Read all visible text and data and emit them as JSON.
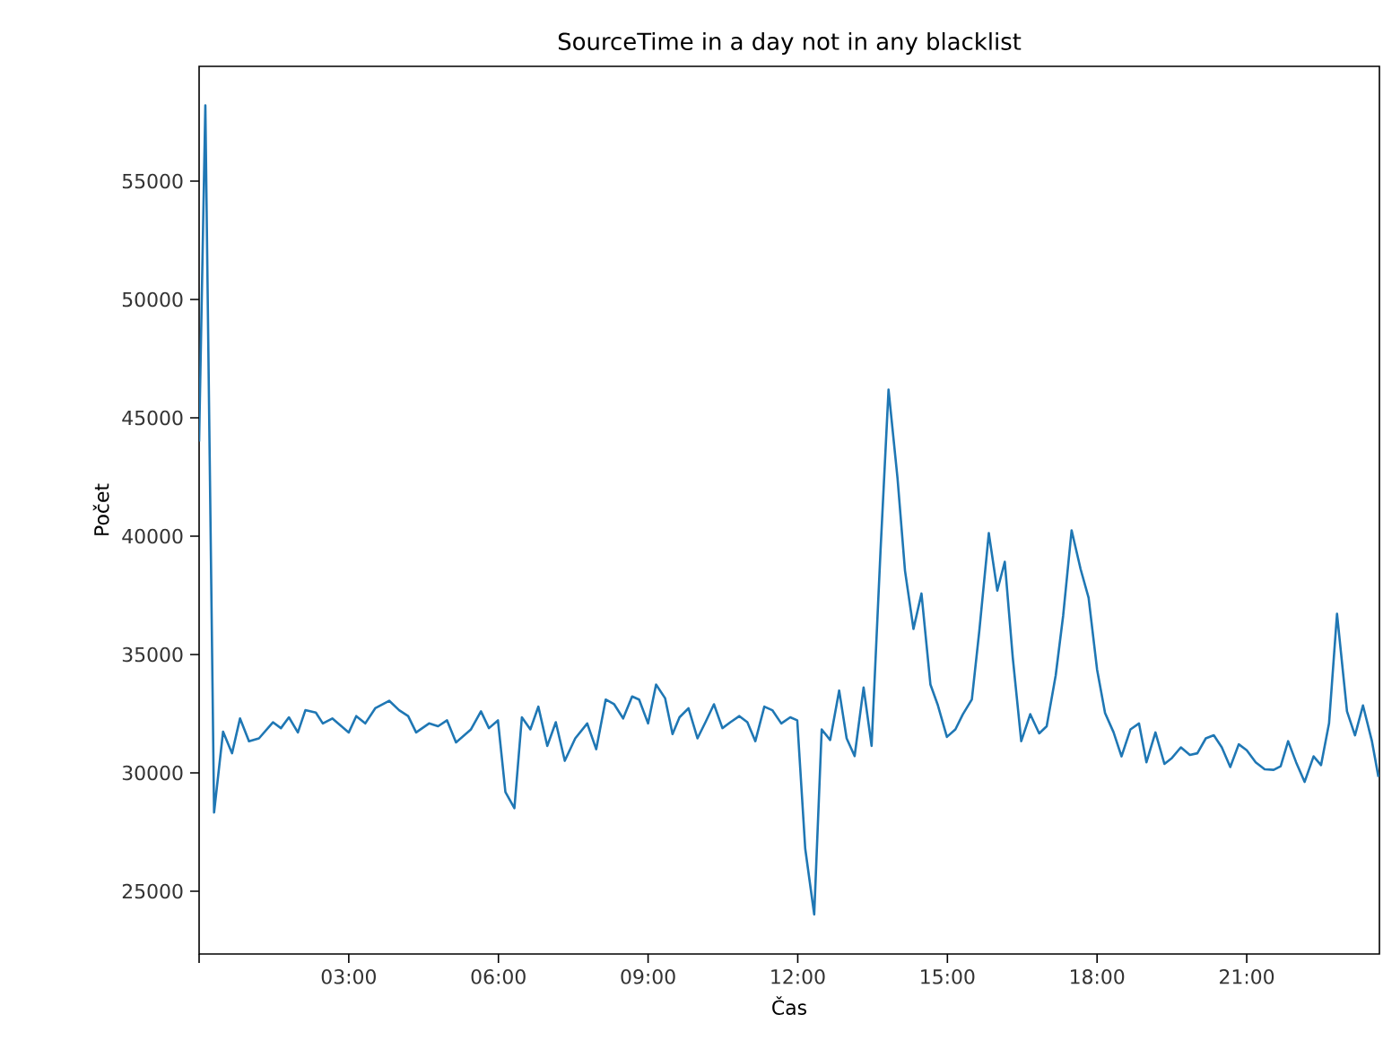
{
  "chart_data": {
    "type": "line",
    "title": "SourceTime in a day not in any blacklist",
    "xlabel": "Čas",
    "ylabel": "Počet",
    "x": [
      0,
      0.125,
      0.3,
      0.48,
      0.66,
      0.82,
      1.0,
      1.2,
      1.48,
      1.64,
      1.8,
      1.98,
      2.13,
      2.34,
      2.48,
      2.67,
      3.0,
      3.15,
      3.33,
      3.53,
      3.81,
      4.01,
      4.19,
      4.35,
      4.61,
      4.79,
      4.97,
      5.15,
      5.45,
      5.65,
      5.81,
      5.99,
      6.14,
      6.32,
      6.47,
      6.64,
      6.8,
      6.98,
      7.15,
      7.33,
      7.54,
      7.78,
      7.96,
      8.15,
      8.32,
      8.5,
      8.68,
      8.82,
      9.0,
      9.16,
      9.34,
      9.49,
      9.63,
      9.81,
      9.99,
      10.15,
      10.32,
      10.49,
      10.65,
      10.83,
      10.99,
      11.15,
      11.33,
      11.49,
      11.67,
      11.85,
      11.99,
      12.15,
      12.33,
      12.48,
      12.65,
      12.83,
      12.98,
      13.14,
      13.32,
      13.48,
      13.66,
      13.82,
      14.0,
      14.15,
      14.32,
      14.48,
      14.66,
      14.81,
      14.99,
      15.16,
      15.31,
      15.49,
      15.64,
      15.83,
      16.0,
      16.15,
      16.31,
      16.48,
      16.66,
      16.84,
      16.99,
      17.17,
      17.32,
      17.49,
      17.67,
      17.83,
      18.0,
      18.16,
      18.33,
      18.49,
      18.67,
      18.84,
      18.99,
      19.17,
      19.35,
      19.5,
      19.68,
      19.86,
      20.01,
      20.18,
      20.34,
      20.5,
      20.67,
      20.84,
      21.0,
      21.18,
      21.36,
      21.54,
      21.68,
      21.83,
      21.99,
      22.16,
      22.34,
      22.49,
      22.65,
      22.81,
      23.01,
      23.17,
      23.33,
      23.51,
      23.64
    ],
    "series": [
      {
        "color": "#1f77b4",
        "values": [
          44000,
          58200,
          28330,
          31740,
          30830,
          32300,
          31340,
          31460,
          32140,
          31890,
          32350,
          31710,
          32650,
          32550,
          32090,
          32300,
          31710,
          32400,
          32090,
          32730,
          33050,
          32650,
          32400,
          31710,
          32090,
          31970,
          32220,
          31290,
          31840,
          32600,
          31890,
          32220,
          29190,
          28510,
          32350,
          31840,
          32800,
          31140,
          32140,
          30510,
          31460,
          32090,
          31000,
          33100,
          32900,
          32300,
          33230,
          33100,
          32090,
          33730,
          33160,
          31640,
          32350,
          32730,
          31460,
          32140,
          32900,
          31890,
          32140,
          32400,
          32140,
          31340,
          32800,
          32650,
          32090,
          32350,
          32220,
          26800,
          24020,
          31840,
          31390,
          33480,
          31460,
          30710,
          33610,
          31140,
          39420,
          46190,
          42450,
          38540,
          36080,
          37580,
          33730,
          32850,
          31520,
          31840,
          32480,
          33100,
          36010,
          40130,
          37700,
          38920,
          34870,
          31340,
          32480,
          31670,
          31970,
          34110,
          36640,
          40250,
          38610,
          37400,
          34370,
          32530,
          31720,
          30700,
          31840,
          32090,
          30450,
          31710,
          30380,
          30630,
          31080,
          30760,
          30830,
          31460,
          31590,
          31080,
          30250,
          31210,
          30960,
          30450,
          30150,
          30130,
          30280,
          31340,
          30450,
          29620,
          30700,
          30330,
          32090,
          36720,
          32600,
          31590,
          32850,
          31340,
          29830
        ]
      }
    ],
    "xlim": [
      0,
      23.66
    ],
    "ylim": [
      22350,
      59850
    ],
    "xticks": [
      {
        "value": 0,
        "label": null
      },
      {
        "value": 3,
        "label": "03:00"
      },
      {
        "value": 6,
        "label": "06:00"
      },
      {
        "value": 9,
        "label": "09:00"
      },
      {
        "value": 12,
        "label": "12:00"
      },
      {
        "value": 15,
        "label": "15:00"
      },
      {
        "value": 18,
        "label": "18:00"
      },
      {
        "value": 21,
        "label": "21:00"
      }
    ],
    "yticks": [
      25000,
      30000,
      35000,
      40000,
      45000,
      50000,
      55000
    ]
  }
}
